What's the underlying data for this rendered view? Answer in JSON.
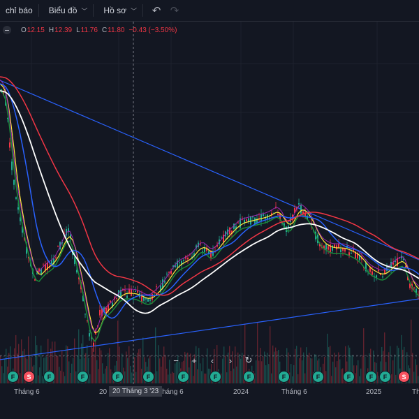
{
  "toolbar": {
    "indicators_label": "chỉ báo",
    "chart_label": "Biểu đồ",
    "profile_label": "Hồ sơ"
  },
  "legend": {
    "o_label": "O",
    "o_value": "12.15",
    "h_label": "H",
    "h_value": "12.39",
    "l_label": "L",
    "l_value": "11.76",
    "c_label": "C",
    "c_value": "11.80",
    "change": "−0.43 (−3.50%)"
  },
  "x_axis": {
    "ticks": [
      "Tháng 6",
      "20",
      "Tháng 6",
      "2024",
      "Tháng 6",
      "2025",
      "Th"
    ],
    "crosshair_date": "20 Tháng 3 '23"
  },
  "events": [
    "F",
    "S",
    "F",
    "F",
    "F",
    "F",
    "F",
    "F",
    "F",
    "F",
    "F",
    "F",
    "F",
    "F",
    "S",
    "F",
    "F"
  ],
  "colors": {
    "up": "#22ab94",
    "down": "#f23645",
    "trendline": "#2962ff",
    "ma_white": "#ffffff",
    "ma_red": "#f23645",
    "ma_blue": "#2962ff",
    "ma_yellow": "#ffeb3b",
    "ma_green": "#1b8a3a",
    "ma_purple": "#9c27b0"
  },
  "icons": [
    "chevron-down-icon",
    "undo-icon",
    "redo-icon",
    "zoom-out-icon",
    "zoom-in-icon",
    "scroll-left-icon",
    "scroll-right-icon",
    "reset-icon"
  ]
}
